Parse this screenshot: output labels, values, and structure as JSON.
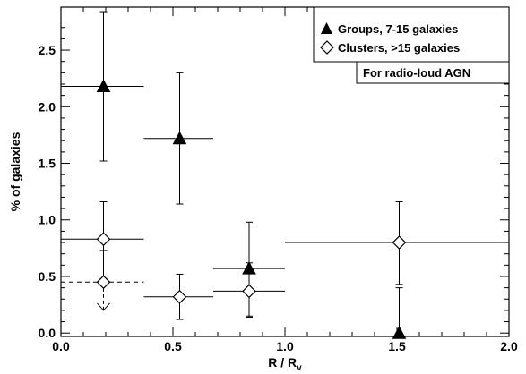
{
  "chart_data": {
    "type": "scatter",
    "xlabel_main": "R / R",
    "xlabel_sub": "v",
    "ylabel": "% of galaxies",
    "xlim": [
      0.0,
      2.0
    ],
    "ylim": [
      -0.03,
      2.88
    ],
    "xticks": [
      "0.0",
      "0.5",
      "1.0",
      "1.5",
      "2.0"
    ],
    "yticks": [
      "0.0",
      "0.5",
      "1.0",
      "1.5",
      "2.0",
      "2.5"
    ],
    "grid": false,
    "legend_position": "top-right",
    "legend_note": "For radio-loud AGN",
    "series": [
      {
        "name": "Groups, 7-15 galaxies",
        "marker": "filled-triangle",
        "points": [
          {
            "x": 0.19,
            "y": 2.18,
            "xlo": 0.0,
            "xhi": 0.37,
            "ylo": 1.52,
            "yhi": 2.84
          },
          {
            "x": 0.53,
            "y": 1.72,
            "xlo": 0.37,
            "xhi": 0.68,
            "ylo": 1.14,
            "yhi": 2.3
          },
          {
            "x": 0.84,
            "y": 0.57,
            "xlo": 0.68,
            "xhi": 1.0,
            "ylo": 0.15,
            "yhi": 0.98
          },
          {
            "x": 1.51,
            "y": 0.0,
            "xlo": 1.51,
            "xhi": 1.51,
            "ylo": 0.0,
            "yhi": 0.4
          }
        ]
      },
      {
        "name": "Clusters, >15 galaxies",
        "marker": "open-diamond",
        "points": [
          {
            "x": 0.19,
            "y": 0.83,
            "xlo": 0.0,
            "xhi": 0.37,
            "ylo": 0.48,
            "yhi": 1.16
          },
          {
            "x": 0.53,
            "y": 0.32,
            "xlo": 0.37,
            "xhi": 0.68,
            "ylo": 0.12,
            "yhi": 0.52
          },
          {
            "x": 0.84,
            "y": 0.37,
            "xlo": 0.68,
            "xhi": 1.0,
            "ylo": 0.14,
            "yhi": 0.62
          },
          {
            "x": 1.51,
            "y": 0.8,
            "xlo": 1.0,
            "xhi": 2.0,
            "ylo": 0.43,
            "yhi": 1.16
          }
        ]
      }
    ],
    "upper_limit": {
      "x": 0.19,
      "y": 0.45,
      "xlo": 0.0,
      "xhi": 0.37,
      "y_arrow_top": 0.73,
      "y_arrow_bottom": 0.2
    }
  },
  "colors": {
    "axis": "#000000",
    "marker": "#000000",
    "background": "#ffffff"
  }
}
